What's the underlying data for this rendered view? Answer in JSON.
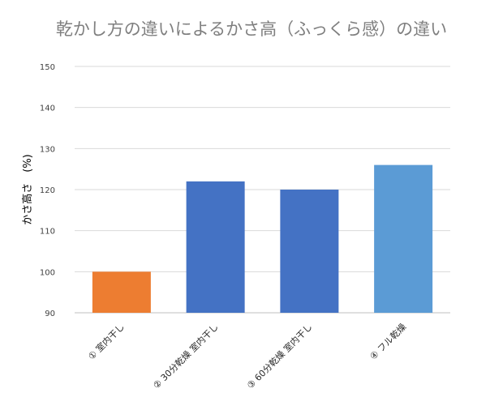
{
  "chart_data": {
    "type": "bar",
    "title": "乾かし方の違いによるかさ高（ふっくら感）の違い",
    "xlabel": "",
    "ylabel": "かさ高さ　(%)",
    "categories": [
      "① 室内干し",
      "② 30分乾燥 室内干し",
      "③ 60分乾燥 室内干し",
      "④ フル乾燥"
    ],
    "values": [
      100,
      122,
      120,
      126
    ],
    "colors": [
      "#ed7d31",
      "#4472c4",
      "#4472c4",
      "#5b9bd5"
    ],
    "ylim": [
      90,
      150
    ],
    "yticks": [
      90,
      100,
      110,
      120,
      130,
      140,
      150
    ],
    "grid": true,
    "legend": "none"
  }
}
